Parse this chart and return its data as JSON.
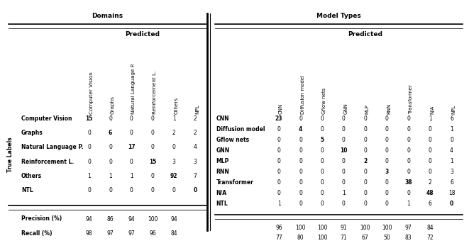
{
  "domains_title": "Domains",
  "model_types_title": "Model Types",
  "predicted_label": "Predicted",
  "true_labels_label": "True Labels",
  "domains_col_headers": [
    "Computer Vision",
    "Graphs",
    "Natural Language P.",
    "Reinforcement L.",
    "Others",
    "NPL"
  ],
  "domains_row_headers": [
    "Computer Vision",
    "Graphs",
    "Natural Language P.",
    "Reinforcement L.",
    "Others",
    "NTL"
  ],
  "domains_data": [
    [
      15,
      0,
      0,
      0,
      1,
      2
    ],
    [
      0,
      6,
      0,
      0,
      2,
      2
    ],
    [
      0,
      0,
      17,
      0,
      0,
      4
    ],
    [
      0,
      0,
      0,
      15,
      3,
      3
    ],
    [
      1,
      1,
      1,
      0,
      92,
      7
    ],
    [
      0,
      0,
      0,
      0,
      0,
      0
    ]
  ],
  "domains_precision": [
    94,
    86,
    94,
    100,
    94
  ],
  "domains_recall": [
    98,
    97,
    97,
    96,
    84
  ],
  "model_col_headers": [
    "CNN",
    "Diffusion model",
    "Gflow nets",
    "GNN",
    "MLP",
    "RNN",
    "Transformer",
    "N/A",
    "NPL"
  ],
  "model_row_headers": [
    "CNN",
    "Diffusion model",
    "Gflow nets",
    "GNN",
    "MLP",
    "RNN",
    "Transformer",
    "N/A",
    "NTL"
  ],
  "model_data": [
    [
      23,
      0,
      0,
      0,
      0,
      0,
      0,
      1,
      6
    ],
    [
      0,
      4,
      0,
      0,
      0,
      0,
      0,
      0,
      1
    ],
    [
      0,
      0,
      5,
      0,
      0,
      0,
      0,
      0,
      0
    ],
    [
      0,
      0,
      0,
      10,
      0,
      0,
      0,
      0,
      4
    ],
    [
      0,
      0,
      0,
      0,
      2,
      0,
      0,
      0,
      1
    ],
    [
      0,
      0,
      0,
      0,
      0,
      3,
      0,
      0,
      3
    ],
    [
      0,
      0,
      0,
      0,
      0,
      0,
      38,
      2,
      6
    ],
    [
      0,
      0,
      0,
      1,
      0,
      0,
      0,
      48,
      18
    ],
    [
      1,
      0,
      0,
      0,
      0,
      0,
      1,
      6,
      0
    ]
  ],
  "model_precision": [
    96,
    100,
    100,
    91,
    100,
    100,
    97,
    84
  ],
  "model_recall": [
    77,
    80,
    100,
    71,
    67,
    50,
    83,
    72
  ],
  "fs": 5.5,
  "hfs": 6.5
}
